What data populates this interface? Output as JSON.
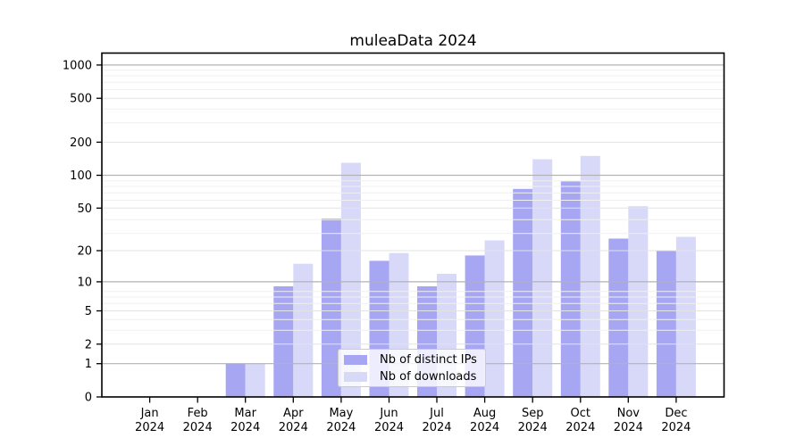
{
  "title": "muleaData 2024",
  "chart_data": {
    "type": "bar",
    "title": "muleaData 2024",
    "months": [
      "Jan",
      "Feb",
      "Mar",
      "Apr",
      "May",
      "Jun",
      "Jul",
      "Aug",
      "Sep",
      "Oct",
      "Nov",
      "Dec"
    ],
    "year_label": "2024",
    "categories": [
      "Jan 2024",
      "Feb 2024",
      "Mar 2024",
      "Apr 2024",
      "May 2024",
      "Jun 2024",
      "Jul 2024",
      "Aug 2024",
      "Sep 2024",
      "Oct 2024",
      "Nov 2024",
      "Dec 2024"
    ],
    "series": [
      {
        "name": "Nb of distinct IPs",
        "color": "#a6a6f3",
        "values": [
          0,
          0,
          1,
          9,
          40,
          16,
          9,
          18,
          75,
          88,
          26,
          20
        ]
      },
      {
        "name": "Nb of downloads",
        "color": "#d8d8f8",
        "values": [
          0,
          0,
          1,
          15,
          130,
          19,
          12,
          25,
          140,
          150,
          52,
          27
        ]
      }
    ],
    "y_ticks": [
      0,
      1,
      2,
      5,
      10,
      20,
      50,
      100,
      200,
      500,
      1000
    ],
    "y_scale": "log10(1+x)",
    "ylim": [
      0,
      1286
    ],
    "grid": "on",
    "legend_position": "lower center",
    "colors": {
      "background": "#ffffff",
      "axis": "#000000",
      "major_grid": "#b3b3b3",
      "mid_grid": "#e3e3e3",
      "minor_grid": "#f0f0f0"
    }
  }
}
